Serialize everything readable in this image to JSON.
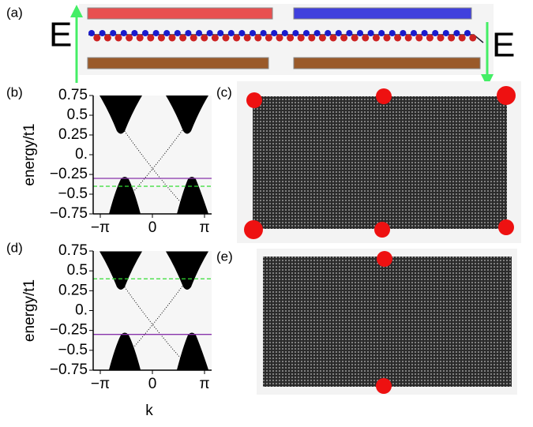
{
  "figure": {
    "panel_labels": [
      "(a)",
      "(b)",
      "(c)",
      "(d)",
      "(e)"
    ],
    "field_labels": [
      "E",
      "E"
    ]
  },
  "chart_data": [
    {
      "type": "band",
      "ylabel": "energy/t1",
      "xlim": [
        -3.57,
        3.57
      ],
      "ylim": [
        -0.75,
        0.75
      ],
      "xticks": [
        {
          "value": -3.14159,
          "label": "−π"
        },
        0,
        {
          "value": 3.14159,
          "label": "π"
        }
      ],
      "yticks": [
        0.75,
        0.5,
        0.25,
        {
          "value": 0,
          "label": "0."
        },
        {
          "value": -0.25,
          "label": "−0.25"
        },
        {
          "value": -0.5,
          "label": "−0.5"
        },
        {
          "value": -0.75,
          "label": "−0.75"
        }
      ],
      "lines": [
        {
          "value": -0.3,
          "color": "#8833aa"
        },
        {
          "value": -0.4,
          "color": "#33dd33"
        }
      ]
    },
    {
      "type": "band",
      "ylabel": "energy/t1",
      "xlabel": "k",
      "xlim": [
        -3.57,
        3.57
      ],
      "ylim": [
        -0.75,
        0.75
      ],
      "xticks": [
        {
          "value": -3.14159,
          "label": "−π"
        },
        0,
        {
          "value": 3.14159,
          "label": "π"
        }
      ],
      "yticks": [
        0.75,
        0.5,
        0.25,
        {
          "value": 0,
          "label": "0."
        },
        {
          "value": -0.25,
          "label": "−0.25"
        },
        {
          "value": -0.5,
          "label": "−0.5"
        },
        {
          "value": -0.75,
          "label": "−0.75"
        }
      ],
      "lines": [
        {
          "value": -0.3,
          "color": "#8833aa"
        },
        {
          "value": 0.4,
          "color": "#33dd33"
        }
      ]
    }
  ]
}
